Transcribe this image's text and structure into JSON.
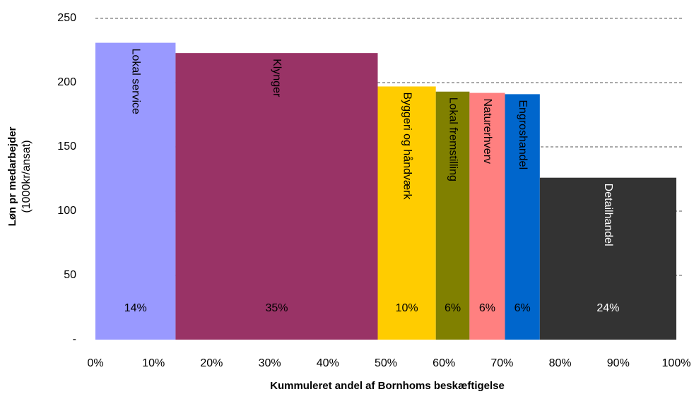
{
  "chart_data": {
    "type": "variable-width-bar",
    "x_label": "Kummuleret andel af Bornhoms beskæftigelse",
    "y_label": [
      "Løn pr medarbejder",
      "(1000kr/ansat)"
    ],
    "categories": [
      "Lokal service",
      "Klynger",
      "Byggeri og håndværk",
      "Lokal fremstilling",
      "Naturerhverv",
      "Engroshandel",
      "Detailhandel"
    ],
    "values": [
      231,
      223,
      197,
      193,
      192,
      191,
      126
    ],
    "widths": [
      13.8,
      34.8,
      10,
      5.8,
      6.1,
      6.0,
      23.5
    ],
    "width_labels": [
      "14%",
      "35%",
      "10%",
      "6%",
      "6%",
      "6%",
      "24%"
    ],
    "colors": [
      "#9999ff",
      "#993366",
      "#ffcc00",
      "#808000",
      "#ff8080",
      "#0066cc",
      "#333333"
    ],
    "label_colors": [
      "#000000",
      "#000000",
      "#000000",
      "#000000",
      "#000000",
      "#000000",
      "#ffffff"
    ],
    "ylim": [
      0,
      250
    ],
    "yticks": [
      {
        "value": 0,
        "label": "-"
      },
      50,
      100,
      150,
      200,
      250
    ],
    "xlim": [
      0,
      100
    ],
    "xticks": [
      {
        "value": 0,
        "label": "0%"
      },
      {
        "value": 10,
        "label": "10%"
      },
      {
        "value": 20,
        "label": "20%"
      },
      {
        "value": 30,
        "label": "30%"
      },
      {
        "value": 40,
        "label": "40%"
      },
      {
        "value": 50,
        "label": "50%"
      },
      {
        "value": 60,
        "label": "60%"
      },
      {
        "value": 70,
        "label": "70%"
      },
      {
        "value": 80,
        "label": "80%"
      },
      {
        "value": 90,
        "label": "90%"
      },
      {
        "value": 100,
        "label": "100%"
      }
    ],
    "grid": true
  }
}
